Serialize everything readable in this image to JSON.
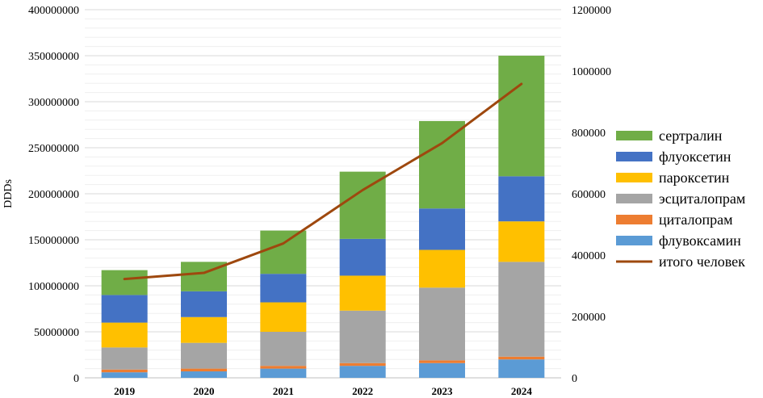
{
  "chart_data": {
    "type": "bar",
    "stacked": true,
    "title": "",
    "xlabel": "",
    "ylabel": "DDDs",
    "categories": [
      "2019",
      "2020",
      "2021",
      "2022",
      "2023",
      "2024"
    ],
    "ylim": [
      0,
      400000000
    ],
    "yticks": [
      "0",
      "50000000",
      "100000000",
      "150000000",
      "200000000",
      "250000000",
      "300000000",
      "350000000",
      "400000000"
    ],
    "y2lim": [
      0,
      1200000
    ],
    "y2ticks": [
      "0",
      "200000",
      "400000",
      "600000",
      "800000",
      "1000000",
      "1200000"
    ],
    "grid": true,
    "legend_position": "right",
    "series": [
      {
        "name": "флувоксамин",
        "color": "#5B9BD5",
        "values": [
          6000000,
          7000000,
          10000000,
          13000000,
          16000000,
          20000000
        ]
      },
      {
        "name": "циталопрам",
        "color": "#ED7D31",
        "values": [
          3000000,
          3000000,
          3000000,
          3000000,
          3000000,
          3000000
        ]
      },
      {
        "name": "эсциталопрам",
        "color": "#A5A5A5",
        "values": [
          24000000,
          28000000,
          37000000,
          57000000,
          79000000,
          103000000
        ]
      },
      {
        "name": "пароксетин",
        "color": "#FFC000",
        "values": [
          27000000,
          28000000,
          32000000,
          38000000,
          41000000,
          44000000
        ]
      },
      {
        "name": "флуоксетин",
        "color": "#4472C4",
        "values": [
          30000000,
          28000000,
          31000000,
          40000000,
          45000000,
          49000000
        ]
      },
      {
        "name": "сертралин",
        "color": "#70AD47",
        "values": [
          27000000,
          32000000,
          47000000,
          73000000,
          95000000,
          131000000
        ]
      }
    ],
    "line_series": {
      "name": "итого человек",
      "color": "#9E480E",
      "axis": "secondary",
      "values": [
        322000,
        342000,
        438000,
        612000,
        765000,
        958000
      ]
    },
    "legend": [
      "сертралин",
      "флуоксетин",
      "пароксетин",
      "эсциталопрам",
      "циталопрам",
      "флувоксамин",
      "итого человек"
    ]
  }
}
